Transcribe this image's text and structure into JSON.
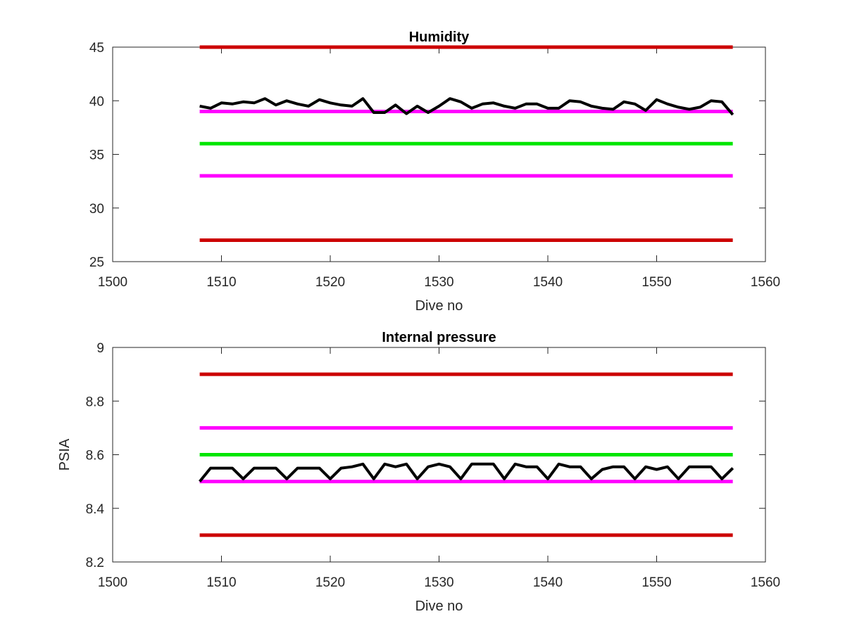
{
  "chart_data": [
    {
      "type": "line",
      "title": "Humidity",
      "xlabel": "Dive no",
      "ylabel": "",
      "xlim": [
        1500,
        1560
      ],
      "ylim": [
        25,
        45
      ],
      "xticks": [
        1500,
        1510,
        1520,
        1530,
        1540,
        1550,
        1560
      ],
      "yticks": [
        25,
        30,
        35,
        40,
        45
      ],
      "grid": false,
      "reference_lines": [
        {
          "y": 45,
          "x": [
            1508,
            1557
          ],
          "color": "#cc0000"
        },
        {
          "y": 39,
          "x": [
            1508,
            1557
          ],
          "color": "#ff00ff"
        },
        {
          "y": 36,
          "x": [
            1508,
            1557
          ],
          "color": "#00e600"
        },
        {
          "y": 33,
          "x": [
            1508,
            1557
          ],
          "color": "#ff00ff"
        },
        {
          "y": 27,
          "x": [
            1508,
            1557
          ],
          "color": "#cc0000"
        }
      ],
      "series": [
        {
          "color": "#000000",
          "x": [
            1508,
            1509,
            1510,
            1511,
            1512,
            1513,
            1514,
            1515,
            1516,
            1517,
            1518,
            1519,
            1520,
            1521,
            1522,
            1523,
            1524,
            1525,
            1526,
            1527,
            1528,
            1529,
            1530,
            1531,
            1532,
            1533,
            1534,
            1535,
            1536,
            1537,
            1538,
            1539,
            1540,
            1541,
            1542,
            1543,
            1544,
            1545,
            1546,
            1547,
            1548,
            1549,
            1550,
            1551,
            1552,
            1553,
            1554,
            1555,
            1556,
            1557
          ],
          "values": [
            39.5,
            39.3,
            39.8,
            39.7,
            39.9,
            39.8,
            40.2,
            39.6,
            40.0,
            39.7,
            39.5,
            40.1,
            39.8,
            39.6,
            39.5,
            40.2,
            38.9,
            38.9,
            39.6,
            38.8,
            39.5,
            38.9,
            39.5,
            40.2,
            39.9,
            39.3,
            39.7,
            39.8,
            39.5,
            39.3,
            39.7,
            39.7,
            39.3,
            39.3,
            40.0,
            39.9,
            39.5,
            39.3,
            39.2,
            39.9,
            39.7,
            39.1,
            40.1,
            39.7,
            39.4,
            39.2,
            39.4,
            40.0,
            39.9,
            38.7
          ]
        }
      ]
    },
    {
      "type": "line",
      "title": "Internal pressure",
      "xlabel": "Dive no",
      "ylabel": "PSIA",
      "xlim": [
        1500,
        1560
      ],
      "ylim": [
        8.2,
        9.0
      ],
      "xticks": [
        1500,
        1510,
        1520,
        1530,
        1540,
        1550,
        1560
      ],
      "yticks": [
        8.2,
        8.4,
        8.6,
        8.8,
        9
      ],
      "grid": false,
      "reference_lines": [
        {
          "y": 8.9,
          "x": [
            1508,
            1557
          ],
          "color": "#cc0000"
        },
        {
          "y": 8.7,
          "x": [
            1508,
            1557
          ],
          "color": "#ff00ff"
        },
        {
          "y": 8.6,
          "x": [
            1508,
            1557
          ],
          "color": "#00e600"
        },
        {
          "y": 8.5,
          "x": [
            1508,
            1557
          ],
          "color": "#ff00ff"
        },
        {
          "y": 8.3,
          "x": [
            1508,
            1557
          ],
          "color": "#cc0000"
        }
      ],
      "series": [
        {
          "color": "#000000",
          "x": [
            1508,
            1509,
            1510,
            1511,
            1512,
            1513,
            1514,
            1515,
            1516,
            1517,
            1518,
            1519,
            1520,
            1521,
            1522,
            1523,
            1524,
            1525,
            1526,
            1527,
            1528,
            1529,
            1530,
            1531,
            1532,
            1533,
            1534,
            1535,
            1536,
            1537,
            1538,
            1539,
            1540,
            1541,
            1542,
            1543,
            1544,
            1545,
            1546,
            1547,
            1548,
            1549,
            1550,
            1551,
            1552,
            1553,
            1554,
            1555,
            1556,
            1557
          ],
          "values": [
            8.5,
            8.55,
            8.55,
            8.55,
            8.51,
            8.55,
            8.55,
            8.55,
            8.51,
            8.55,
            8.55,
            8.55,
            8.51,
            8.55,
            8.555,
            8.565,
            8.51,
            8.565,
            8.555,
            8.565,
            8.51,
            8.555,
            8.565,
            8.555,
            8.51,
            8.565,
            8.565,
            8.565,
            8.51,
            8.565,
            8.555,
            8.555,
            8.51,
            8.565,
            8.555,
            8.555,
            8.51,
            8.545,
            8.555,
            8.555,
            8.51,
            8.555,
            8.545,
            8.555,
            8.51,
            8.555,
            8.555,
            8.555,
            8.51,
            8.55
          ]
        }
      ]
    }
  ]
}
